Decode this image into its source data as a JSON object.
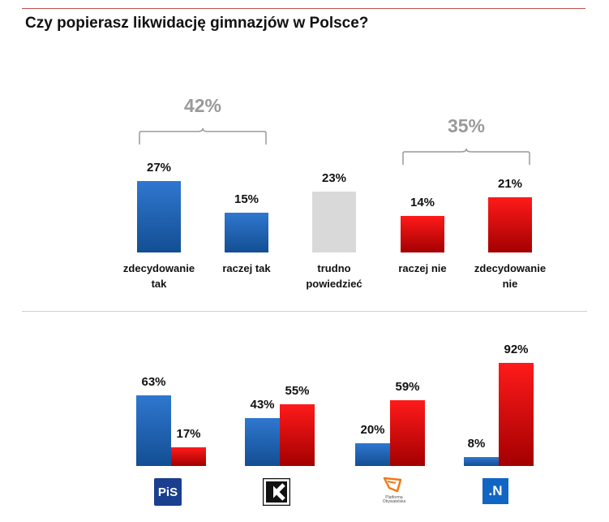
{
  "title": "Czy popierasz likwidację gimnazjów w Polsce?",
  "colors": {
    "support": "#1a5fb4",
    "oppose": "#e00000",
    "neutral": "#d9d9d9",
    "group_total": "#9a9a9a"
  },
  "chart_data": [
    {
      "type": "bar",
      "title": "Czy popierasz likwidację gimnazjów w Polsce?",
      "categories": [
        "zdecydowanie tak",
        "raczej tak",
        "trudno powiedzieć",
        "raczej nie",
        "zdecydowanie nie"
      ],
      "category_labels": [
        "zdecydowanie\ntak",
        "raczej tak",
        "trudno\npowiedzieć",
        "raczej nie",
        "zdecydowanie\nnie"
      ],
      "values": [
        27,
        15,
        23,
        14,
        21
      ],
      "value_labels": [
        "27%",
        "15%",
        "23%",
        "14%",
        "21%"
      ],
      "bar_colors": [
        "blue",
        "blue",
        "grey",
        "red",
        "red"
      ],
      "unit": "%",
      "groups": [
        {
          "label": "42%",
          "value": 42,
          "covers": [
            "zdecydowanie tak",
            "raczej tak"
          ]
        },
        {
          "label": "35%",
          "value": 35,
          "covers": [
            "raczej nie",
            "zdecydowanie nie"
          ]
        }
      ],
      "ylim": [
        0,
        30
      ]
    },
    {
      "type": "bar",
      "categories": [
        "PiS",
        "Kukiz'15",
        "Platforma Obywatelska",
        ".N"
      ],
      "category_logos": [
        "PiS",
        "Kukiz'15",
        "Platforma Obywatelska",
        ".N"
      ],
      "series": [
        {
          "values": [
            63,
            43,
            20,
            8
          ],
          "value_labels": [
            "63%",
            "43%",
            "20%",
            "8%"
          ],
          "color": "blue"
        },
        {
          "values": [
            17,
            55,
            59,
            92
          ],
          "value_labels": [
            "17%",
            "55%",
            "59%",
            "92%"
          ],
          "color": "red"
        }
      ],
      "unit": "%",
      "ylim": [
        0,
        100
      ]
    }
  ],
  "logos": {
    "pis_text": "PiS",
    "po_text": "Platforma Obywatelska",
    "n_text": ".N"
  }
}
